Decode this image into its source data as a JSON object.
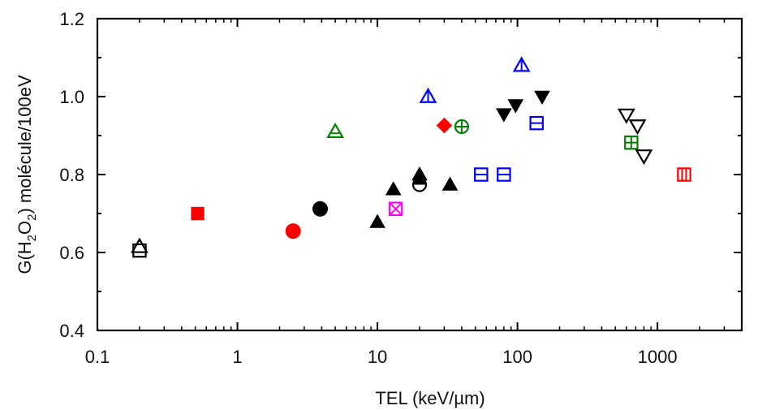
{
  "chart_data": {
    "type": "scatter",
    "title": "",
    "xlabel": "TEL (keV/µm)",
    "ylabel_parts": [
      "G(H",
      "2",
      "O",
      "2",
      ") molécule/100eV"
    ],
    "xscale": "log",
    "xlim": [
      0.1,
      4000
    ],
    "ylim": [
      0.4,
      1.2
    ],
    "xticks": [
      0.1,
      1,
      10,
      100,
      1000
    ],
    "xtick_labels": [
      "0.1",
      "1",
      "10",
      "100",
      "1000"
    ],
    "yticks": [
      0.4,
      0.6,
      0.8,
      1.0,
      1.2
    ],
    "ytick_labels": [
      "0.4",
      "0.6",
      "0.8",
      "1.0",
      "1.2"
    ],
    "grid": false,
    "points": [
      {
        "x": 0.2,
        "y": 0.605,
        "marker": "square-open",
        "color": "#000000"
      },
      {
        "x": 0.2,
        "y": 0.615,
        "marker": "triangle-up-open",
        "color": "#000000"
      },
      {
        "x": 0.52,
        "y": 0.7,
        "marker": "square",
        "color": "#ff0000"
      },
      {
        "x": 2.5,
        "y": 0.655,
        "marker": "circle",
        "color": "#ff0000"
      },
      {
        "x": 3.9,
        "y": 0.712,
        "marker": "circle",
        "color": "#000000"
      },
      {
        "x": 5.0,
        "y": 0.91,
        "marker": "triangle-up-bar",
        "color": "#008000"
      },
      {
        "x": 10.0,
        "y": 0.678,
        "marker": "triangle-up",
        "color": "#000000"
      },
      {
        "x": 13.0,
        "y": 0.762,
        "marker": "triangle-up",
        "color": "#000000"
      },
      {
        "x": 13.5,
        "y": 0.712,
        "marker": "square-cross",
        "color": "#ff00ff"
      },
      {
        "x": 20.0,
        "y": 0.8,
        "marker": "triangle-up",
        "color": "#000000"
      },
      {
        "x": 20.0,
        "y": 0.774,
        "marker": "circle-half",
        "color": "#000000"
      },
      {
        "x": 23.0,
        "y": 1.0,
        "marker": "triangle-up-vbar",
        "color": "#0000ff"
      },
      {
        "x": 30.0,
        "y": 0.926,
        "marker": "diamond",
        "color": "#ff0000"
      },
      {
        "x": 33.0,
        "y": 0.774,
        "marker": "triangle-up",
        "color": "#000000"
      },
      {
        "x": 40.0,
        "y": 0.923,
        "marker": "circle-plus",
        "color": "#008000"
      },
      {
        "x": 55.0,
        "y": 0.8,
        "marker": "square-hbar",
        "color": "#0000ff"
      },
      {
        "x": 80.0,
        "y": 0.8,
        "marker": "square-hbar",
        "color": "#0000ff"
      },
      {
        "x": 80.0,
        "y": 0.955,
        "marker": "triangle-down",
        "color": "#000000"
      },
      {
        "x": 97.0,
        "y": 0.978,
        "marker": "triangle-down",
        "color": "#000000"
      },
      {
        "x": 107.0,
        "y": 1.08,
        "marker": "triangle-up-vbar",
        "color": "#0000ff"
      },
      {
        "x": 137.0,
        "y": 0.932,
        "marker": "square-hbar",
        "color": "#0000ff"
      },
      {
        "x": 150.0,
        "y": 1.0,
        "marker": "triangle-down",
        "color": "#000000"
      },
      {
        "x": 600.0,
        "y": 0.953,
        "marker": "triangle-down-open",
        "color": "#000000"
      },
      {
        "x": 650.0,
        "y": 0.882,
        "marker": "square-plus",
        "color": "#008000"
      },
      {
        "x": 720.0,
        "y": 0.925,
        "marker": "triangle-down-open",
        "color": "#000000"
      },
      {
        "x": 800.0,
        "y": 0.848,
        "marker": "triangle-down-open",
        "color": "#000000"
      },
      {
        "x": 1550.0,
        "y": 0.8,
        "marker": "square-vbar",
        "color": "#ff0000"
      }
    ]
  }
}
